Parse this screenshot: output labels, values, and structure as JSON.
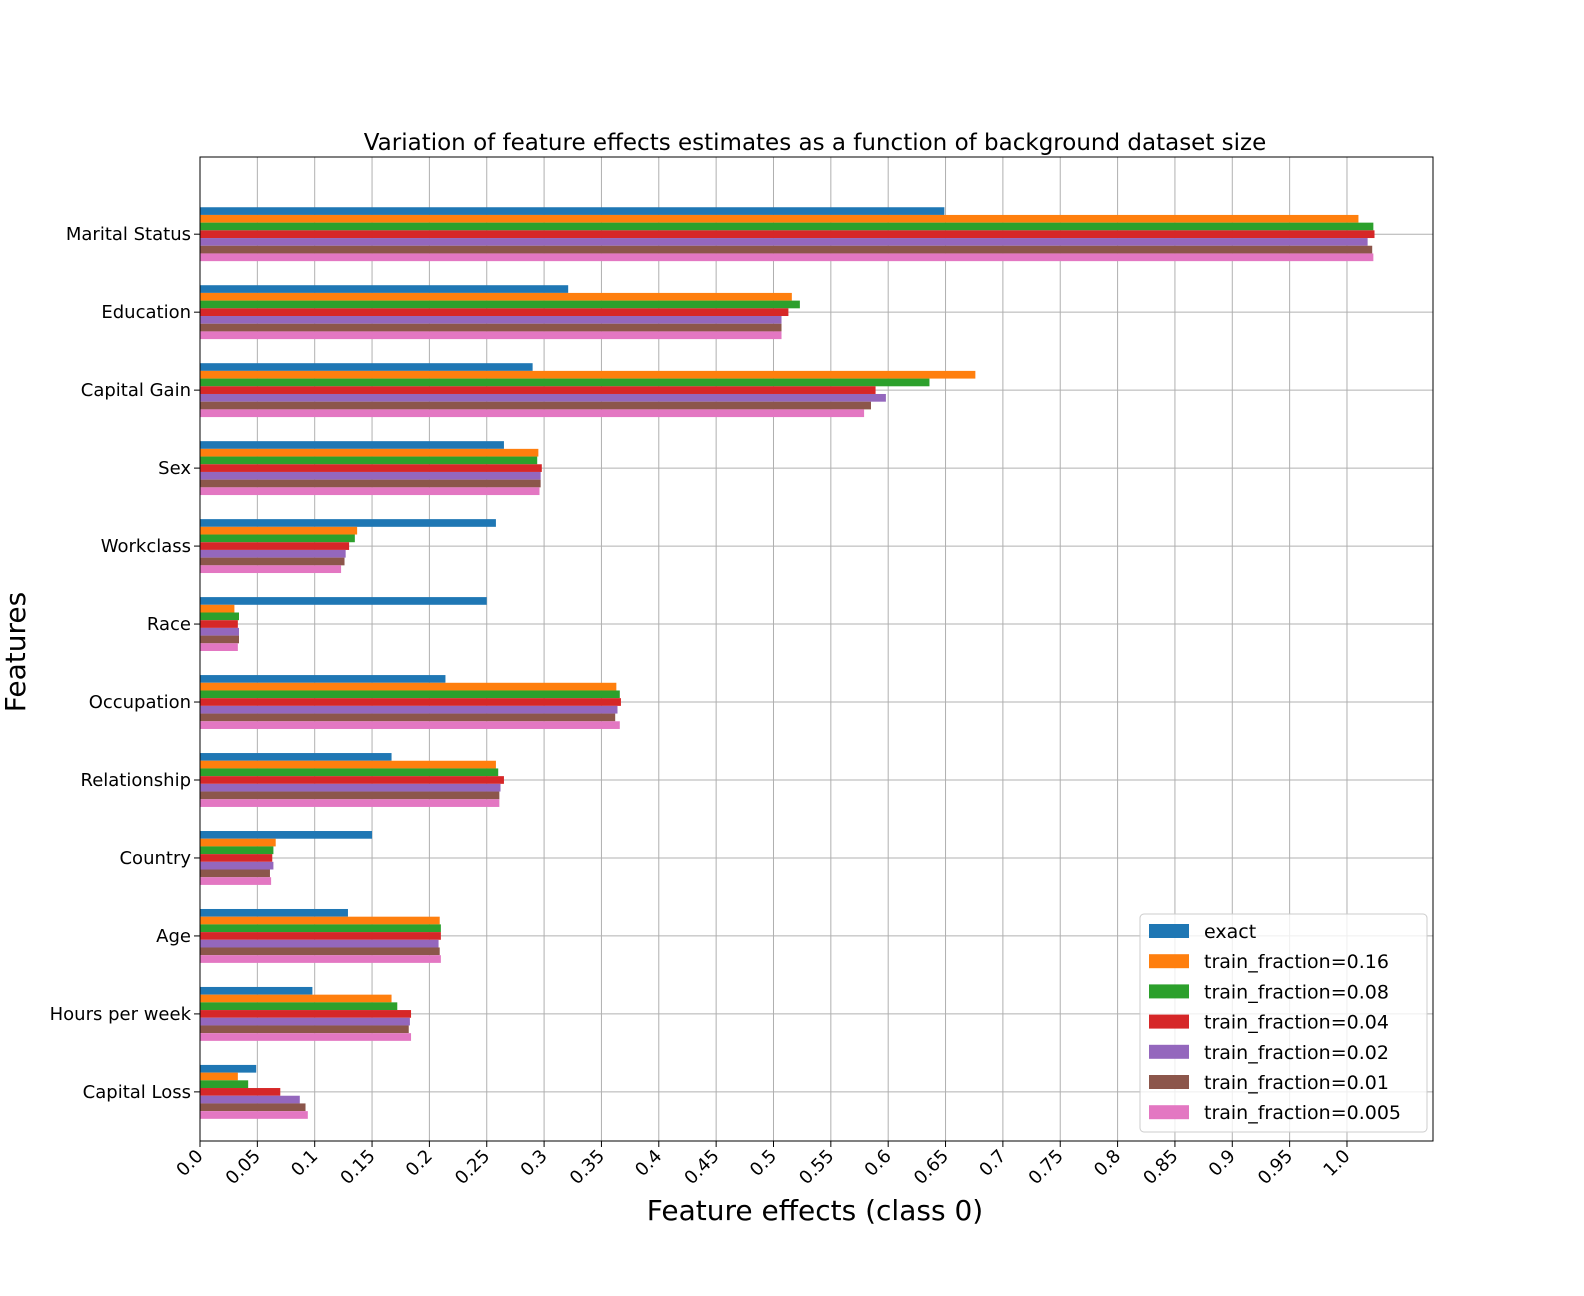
{
  "chart_data": {
    "type": "bar",
    "orientation": "horizontal",
    "title": "Variation of feature effects estimates as a function of background dataset size",
    "xlabel": "Feature effects (class 0)",
    "ylabel": "Features",
    "xlim": [
      0,
      1.075
    ],
    "xticks": [
      "0.0",
      "0.05",
      "0.1",
      "0.15",
      "0.2",
      "0.25",
      "0.3",
      "0.35",
      "0.4",
      "0.45",
      "0.5",
      "0.55",
      "0.6",
      "0.65",
      "0.7",
      "0.75",
      "0.8",
      "0.85",
      "0.9",
      "0.95",
      "1.0"
    ],
    "grid": true,
    "legend_position": "bottom-right",
    "categories": [
      "Marital Status",
      "Education",
      "Capital Gain",
      "Sex",
      "Workclass",
      "Race",
      "Occupation",
      "Relationship",
      "Country",
      "Age",
      "Hours per week",
      "Capital Loss"
    ],
    "series": [
      {
        "name": "exact",
        "color": "#1f77b4",
        "values": [
          0.649,
          0.321,
          0.29,
          0.265,
          0.258,
          0.25,
          0.214,
          0.167,
          0.15,
          0.129,
          0.098,
          0.049
        ]
      },
      {
        "name": "train_fraction=0.16",
        "color": "#ff7f0e",
        "values": [
          1.01,
          0.516,
          0.676,
          0.295,
          0.137,
          0.03,
          0.363,
          0.258,
          0.066,
          0.209,
          0.167,
          0.033
        ]
      },
      {
        "name": "train_fraction=0.08",
        "color": "#2ca02c",
        "values": [
          1.023,
          0.523,
          0.636,
          0.294,
          0.135,
          0.034,
          0.366,
          0.26,
          0.064,
          0.21,
          0.172,
          0.042
        ]
      },
      {
        "name": "train_fraction=0.04",
        "color": "#d62728",
        "values": [
          1.024,
          0.513,
          0.589,
          0.298,
          0.13,
          0.033,
          0.367,
          0.265,
          0.063,
          0.21,
          0.184,
          0.07
        ]
      },
      {
        "name": "train_fraction=0.02",
        "color": "#9467bd",
        "values": [
          1.018,
          0.507,
          0.598,
          0.297,
          0.127,
          0.034,
          0.364,
          0.262,
          0.064,
          0.208,
          0.183,
          0.087
        ]
      },
      {
        "name": "train_fraction=0.01",
        "color": "#8c564b",
        "values": [
          1.022,
          0.507,
          0.585,
          0.297,
          0.126,
          0.034,
          0.362,
          0.261,
          0.061,
          0.209,
          0.182,
          0.092
        ]
      },
      {
        "name": "train_fraction=0.005",
        "color": "#e377c2",
        "values": [
          1.023,
          0.507,
          0.579,
          0.296,
          0.123,
          0.033,
          0.366,
          0.261,
          0.062,
          0.21,
          0.184,
          0.094
        ]
      }
    ]
  }
}
